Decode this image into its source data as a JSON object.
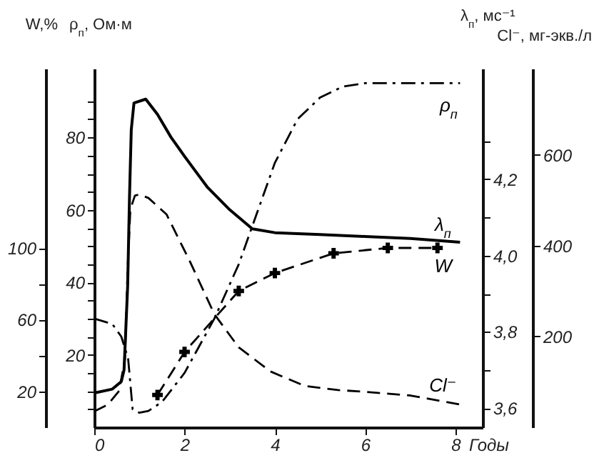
{
  "chart_data": [
    {
      "type": "line",
      "xlabel": "Годы",
      "ylabel": "ρ$_{п}$, Ом·м",
      "y2label": "λ$_{п}$, мс⁻¹",
      "xlim": [
        0,
        8.6
      ],
      "xticks": [
        0,
        2,
        4,
        6,
        8
      ],
      "ylim": [
        0,
        99
      ],
      "yticks": [
        {
          "value": 5,
          "label": null
        },
        {
          "value": 10,
          "label": null
        },
        {
          "value": 15,
          "label": null
        },
        20,
        {
          "value": 25,
          "label": null
        },
        {
          "value": 30,
          "label": null
        },
        {
          "value": 35,
          "label": null
        },
        40,
        {
          "value": 45,
          "label": null
        },
        {
          "value": 50,
          "label": null
        },
        {
          "value": 55,
          "label": null
        },
        60,
        {
          "value": 65,
          "label": null
        },
        {
          "value": 70,
          "label": null
        },
        {
          "value": 75,
          "label": null
        },
        80,
        {
          "value": 85,
          "label": null
        },
        {
          "value": 90,
          "label": null
        }
      ],
      "y2lim": [
        3.55,
        4.49
      ],
      "y2ticks": [
        {
          "value": 3.6,
          "label": "3,6"
        },
        {
          "value": 3.7,
          "label": null
        },
        {
          "value": 3.8,
          "label": "3,8"
        },
        {
          "value": 3.9,
          "label": null
        },
        {
          "value": 4.0,
          "label": "4,0"
        },
        {
          "value": 4.1,
          "label": null
        },
        {
          "value": 4.2,
          "label": "4,2"
        },
        {
          "value": 4.3,
          "label": null
        }
      ],
      "series": [
        {
          "name": "ρ$_{п}$",
          "color": "#000000",
          "line_style": "dashdot",
          "marker": "none",
          "x": [
            0,
            0.4,
            0.6,
            0.75,
            0.85,
            1.0,
            1.2,
            1.5,
            2.0,
            2.66,
            3.2,
            3.6,
            4.0,
            4.5,
            5.0,
            5.5,
            6.0,
            7.0,
            8.1
          ],
          "values": [
            30,
            28.5,
            25,
            19,
            5,
            4,
            4.5,
            7,
            15,
            30,
            45,
            59,
            73,
            85,
            91,
            94,
            95,
            95,
            95
          ]
        },
        {
          "name": "λ$_{п}$",
          "color": "#000000",
          "axis": "y2",
          "line_style": "solid",
          "marker": "none",
          "x": [
            0,
            0.4,
            0.6,
            0.66,
            0.74,
            0.78,
            0.82,
            0.88,
            1.14,
            1.4,
            1.7,
            2.0,
            2.5,
            3.0,
            3.5,
            4.0,
            5.0,
            6.0,
            7.0,
            8.1
          ],
          "values": [
            3.64,
            3.65,
            3.67,
            3.7,
            3.92,
            4.15,
            4.33,
            4.4,
            4.41,
            4.37,
            4.31,
            4.26,
            4.18,
            4.12,
            4.07,
            4.06,
            4.055,
            4.05,
            4.045,
            4.035
          ]
        }
      ]
    },
    {
      "type": "line",
      "ylabel": "W,%",
      "y2label": "Cl⁻, мг-экв./л",
      "tick_labels": "y",
      "xlim": [
        0,
        8.6
      ],
      "ylim": [
        0,
        200
      ],
      "yticks": [
        20,
        {
          "value": 40,
          "label": null
        },
        60,
        {
          "value": 80,
          "label": null
        },
        100
      ],
      "y2lim": [
        0,
        790
      ],
      "y2ticks": [
        200,
        400,
        600
      ],
      "series": [
        {
          "name": "W",
          "color": "#000000",
          "line_style": "dashed",
          "marker": "cross",
          "x": [
            1.4,
            2.0,
            3.2,
            4.0,
            5.3,
            6.5,
            7.6
          ],
          "values": [
            18,
            42,
            76,
            86,
            97,
            100,
            100
          ]
        },
        {
          "name": "Cl⁻",
          "color": "#000000",
          "axis": "y2",
          "line_style": "dashed",
          "marker": "none",
          "x": [
            0,
            0.3,
            0.55,
            0.68,
            0.74,
            0.8,
            0.9,
            1.0,
            1.2,
            1.6,
            2.12,
            2.66,
            3.2,
            3.9,
            4.66,
            5.4,
            6.0,
            7.0,
            8.1
          ],
          "values": [
            35,
            50,
            80,
            150,
            350,
            480,
            510,
            513,
            505,
            469,
            365,
            249,
            176,
            123,
            91,
            82,
            78,
            70,
            50
          ]
        }
      ]
    }
  ]
}
